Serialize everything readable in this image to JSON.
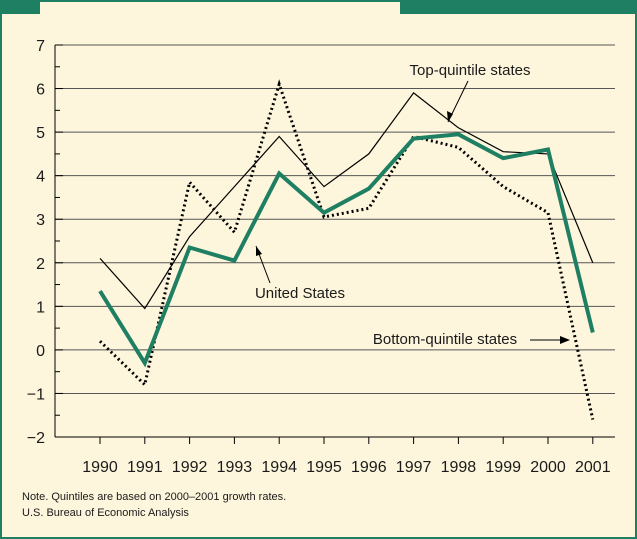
{
  "chart_data": {
    "type": "line",
    "title": "",
    "xlabel": "",
    "ylabel": "",
    "x": [
      "1990",
      "1991",
      "1992",
      "1993",
      "1994",
      "1995",
      "1996",
      "1997",
      "1998",
      "1999",
      "2000",
      "2001"
    ],
    "ylim": [
      -2,
      7
    ],
    "yticks": [
      7,
      6,
      5,
      4,
      3,
      2,
      1,
      0,
      -1,
      -2
    ],
    "ytick_labels": [
      "7",
      "6",
      "5",
      "4",
      "3",
      "2",
      "1",
      "0",
      "−1",
      "−2"
    ],
    "grid": "horizontal",
    "series": [
      {
        "name": "Top-quintile states",
        "style": "thin-solid",
        "color": "#000000",
        "values": [
          2.1,
          0.95,
          2.6,
          3.75,
          4.9,
          3.75,
          4.5,
          5.9,
          5.1,
          4.55,
          4.5,
          2.0
        ]
      },
      {
        "name": "United States",
        "style": "thick-solid",
        "color": "#1f7f62",
        "values": [
          1.35,
          -0.3,
          2.35,
          2.05,
          4.05,
          3.15,
          3.7,
          4.85,
          4.95,
          4.4,
          4.6,
          0.4
        ]
      },
      {
        "name": "Bottom-quintile states",
        "style": "dotted",
        "color": "#000000",
        "values": [
          0.2,
          -0.8,
          3.85,
          2.7,
          6.1,
          3.05,
          3.25,
          4.9,
          4.65,
          3.75,
          3.15,
          -1.6
        ]
      }
    ],
    "annotations": {
      "top": "Top-quintile states",
      "us": "United States",
      "bottom": "Bottom-quintile states"
    }
  },
  "notes": {
    "line1": "Note. Quintiles are based on 2000–2001 growth rates.",
    "line2": "U.S. Bureau of Economic Analysis"
  },
  "colors": {
    "frame": "#1f7f62",
    "background": "#fdf6dc",
    "us_line": "#1f7f62"
  }
}
